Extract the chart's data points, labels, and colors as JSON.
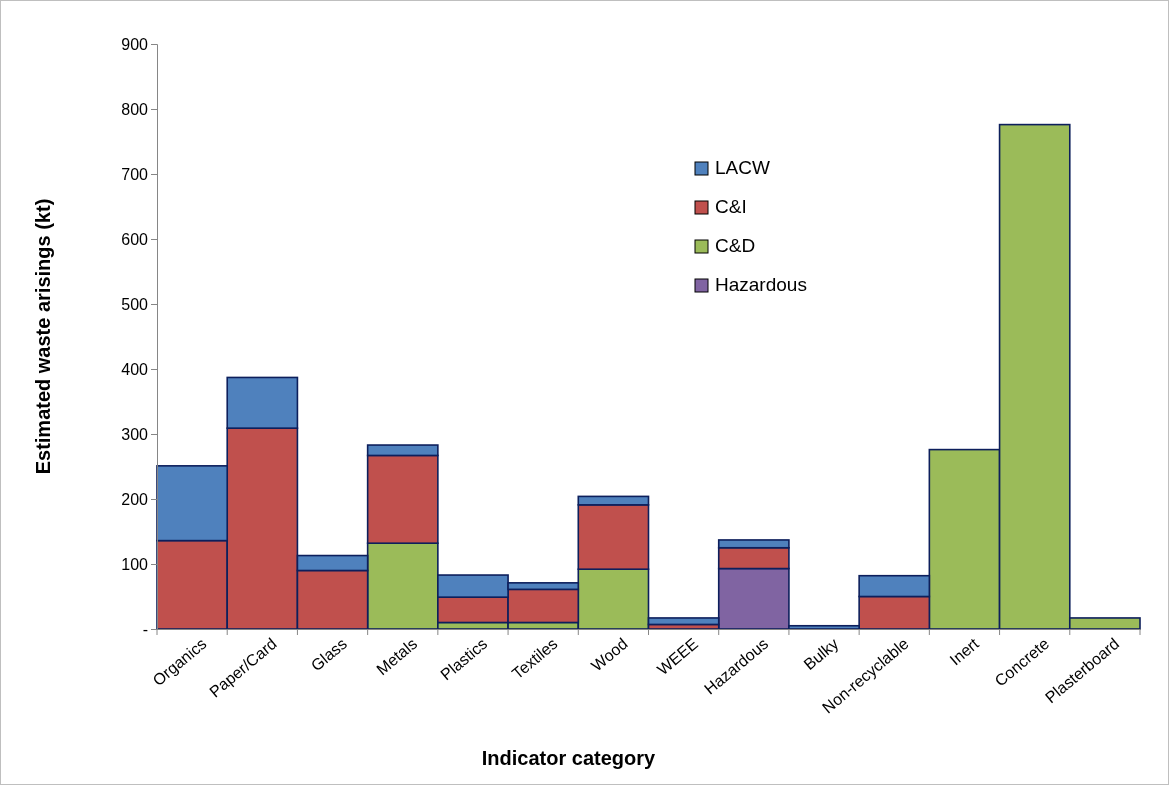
{
  "chart_data": {
    "type": "bar",
    "stacked": true,
    "xlabel": "Indicator category",
    "ylabel": "Estimated waste arisings (kt)",
    "categories": [
      "Organics",
      "Paper/Card",
      "Glass",
      "Metals",
      "Plastics",
      "Textiles",
      "Wood",
      "WEEE",
      "Hazardous",
      "Bulky",
      "Non-recyclable",
      "Inert",
      "Concrete",
      "Plasterboard"
    ],
    "series": [
      {
        "name": "Hazardous",
        "color": "#8064a2",
        "values": [
          null,
          null,
          null,
          null,
          null,
          null,
          null,
          null,
          93,
          null,
          null,
          null,
          null,
          null
        ]
      },
      {
        "name": "C&D",
        "color": "#9bbb59",
        "values": [
          null,
          null,
          null,
          132,
          10,
          10,
          92,
          null,
          null,
          null,
          null,
          276,
          776,
          17
        ]
      },
      {
        "name": "C&I",
        "color": "#c0504d",
        "values": [
          136,
          309,
          90,
          135,
          39,
          51,
          99,
          7,
          32,
          null,
          50,
          null,
          null,
          null
        ]
      },
      {
        "name": "LACW",
        "color": "#4f81bd",
        "values": [
          115,
          78,
          23,
          16,
          34,
          10,
          13,
          10,
          12,
          5,
          32,
          null,
          null,
          null
        ]
      }
    ],
    "ylim": [
      0,
      900
    ],
    "yticks": [
      {
        "value": 0,
        "label": "-"
      },
      100,
      200,
      300,
      400,
      500,
      600,
      700,
      800,
      900
    ],
    "grid": false,
    "legend": "top right"
  }
}
